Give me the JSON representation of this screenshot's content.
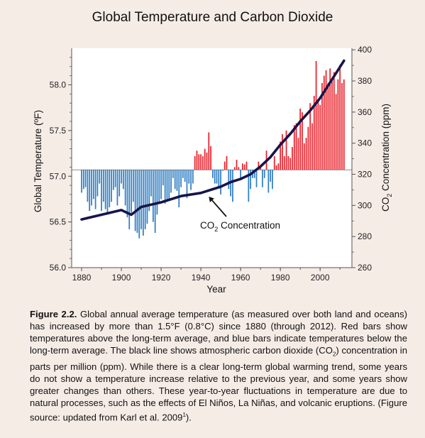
{
  "chart_data": {
    "type": "bar",
    "title": "Global Temperature and Carbon Dioxide",
    "xlabel": "Year",
    "ylabel": "Global Temperature (ºF)",
    "ylabel_right_pre": "CO",
    "ylabel_right_sub": "2",
    "ylabel_right_post": " Concentration (ppm)",
    "xlim": [
      1875,
      2016
    ],
    "ylim": [
      56.0,
      58.4
    ],
    "ylim_right": [
      260,
      401
    ],
    "baseline": 57.07,
    "x_ticks": [
      1880,
      1900,
      1920,
      1940,
      1960,
      1980,
      2000
    ],
    "y_ticks": [
      56.0,
      56.5,
      57.0,
      57.5,
      58.0
    ],
    "y_tick_labels": [
      "56.0",
      "56.5",
      "57.0",
      "57.5",
      "58.0"
    ],
    "y_right_ticks": [
      260,
      280,
      300,
      320,
      340,
      360,
      380,
      400
    ],
    "annotation": {
      "pre": "CO",
      "sub": "2",
      "post": " Concentration",
      "arrow_to": [
        1944,
        307
      ]
    },
    "colors": {
      "above": "#e8212b",
      "below": "#2f7fc4",
      "co2_line": "#17154a"
    },
    "series": [
      {
        "name": "Annual temperature",
        "x": [
          1880,
          1881,
          1882,
          1883,
          1884,
          1885,
          1886,
          1887,
          1888,
          1889,
          1890,
          1891,
          1892,
          1893,
          1894,
          1895,
          1896,
          1897,
          1898,
          1899,
          1900,
          1901,
          1902,
          1903,
          1904,
          1905,
          1906,
          1907,
          1908,
          1909,
          1910,
          1911,
          1912,
          1913,
          1914,
          1915,
          1916,
          1917,
          1918,
          1919,
          1920,
          1921,
          1922,
          1923,
          1924,
          1925,
          1926,
          1927,
          1928,
          1929,
          1930,
          1931,
          1932,
          1933,
          1934,
          1935,
          1936,
          1937,
          1938,
          1939,
          1940,
          1941,
          1942,
          1943,
          1944,
          1945,
          1946,
          1947,
          1948,
          1949,
          1950,
          1951,
          1952,
          1953,
          1954,
          1955,
          1956,
          1957,
          1958,
          1959,
          1960,
          1961,
          1962,
          1963,
          1964,
          1965,
          1966,
          1967,
          1968,
          1969,
          1970,
          1971,
          1972,
          1973,
          1974,
          1975,
          1976,
          1977,
          1978,
          1979,
          1980,
          1981,
          1982,
          1983,
          1984,
          1985,
          1986,
          1987,
          1988,
          1989,
          1990,
          1991,
          1992,
          1993,
          1994,
          1995,
          1996,
          1997,
          1998,
          1999,
          2000,
          2001,
          2002,
          2003,
          2004,
          2005,
          2006,
          2007,
          2008,
          2009,
          2010,
          2011,
          2012
        ],
        "values": [
          56.82,
          56.86,
          56.88,
          56.72,
          56.62,
          56.68,
          56.75,
          56.64,
          56.78,
          56.92,
          56.62,
          56.72,
          56.64,
          56.58,
          56.66,
          56.72,
          56.85,
          56.88,
          56.68,
          56.78,
          56.92,
          56.86,
          56.68,
          56.55,
          56.42,
          56.6,
          56.72,
          56.4,
          56.38,
          56.32,
          56.42,
          56.35,
          56.42,
          56.48,
          56.62,
          56.78,
          56.5,
          56.38,
          56.58,
          56.72,
          56.75,
          56.9,
          56.7,
          56.74,
          56.74,
          56.82,
          56.98,
          56.86,
          56.84,
          56.66,
          56.88,
          56.98,
          56.94,
          56.76,
          56.92,
          56.85,
          56.92,
          57.22,
          57.28,
          57.24,
          57.24,
          57.22,
          57.3,
          57.26,
          57.48,
          57.33,
          56.98,
          56.92,
          56.92,
          56.88,
          56.8,
          57.06,
          57.16,
          57.22,
          56.86,
          56.78,
          56.72,
          57.1,
          57.18,
          57.1,
          56.98,
          57.14,
          57.13,
          57.16,
          56.72,
          56.86,
          56.98,
          56.98,
          56.88,
          57.16,
          57.12,
          56.88,
          56.98,
          57.28,
          56.82,
          56.94,
          56.86,
          57.22,
          57.12,
          57.14,
          57.38,
          57.46,
          57.22,
          57.5,
          57.22,
          57.2,
          57.32,
          57.56,
          57.58,
          57.42,
          57.74,
          57.7,
          57.36,
          57.42,
          57.54,
          57.8,
          57.58,
          57.88,
          58.26,
          57.82,
          57.78,
          58.02,
          58.1,
          58.16,
          58.02,
          58.18,
          58.08,
          58.14,
          57.9,
          58.06,
          58.22,
          58.02,
          58.06
        ]
      },
      {
        "name": "CO2 concentration (ppm)",
        "x": [
          1880,
          1890,
          1900,
          1905,
          1910,
          1920,
          1930,
          1940,
          1950,
          1955,
          1960,
          1965,
          1970,
          1975,
          1980,
          1985,
          1990,
          1995,
          2000,
          2005,
          2010,
          2012
        ],
        "values": [
          291,
          294,
          297,
          294,
          299,
          302,
          306,
          308,
          312,
          315,
          317,
          320,
          325,
          331,
          339,
          346,
          354,
          361,
          369,
          379,
          389,
          393
        ]
      }
    ]
  },
  "caption": {
    "label": "Figure 2.2.",
    "part1": " Global annual average temperature (as measured over both land and oceans) has increased by more than 1.5°F (0.8°C) since 1880 (through 2012). Red bars show temperatures above the long-term average, and blue bars indicate temperatures below the long-term average. The black line shows atmospheric carbon dioxide (CO",
    "sub": "2",
    "part2": ") concentration in parts per million (ppm). While there is a clear long-term global warming trend, some years do not show a temperature increase relative to the previous year, and some years show greater changes than others. These year-to-year fluctuations in temperature are due to natural processes, such as the effects of El Niños, La Niñas, and volcanic eruptions. (Figure source: updated from Karl et al. 2009",
    "sup": "1",
    "part3": ")."
  }
}
